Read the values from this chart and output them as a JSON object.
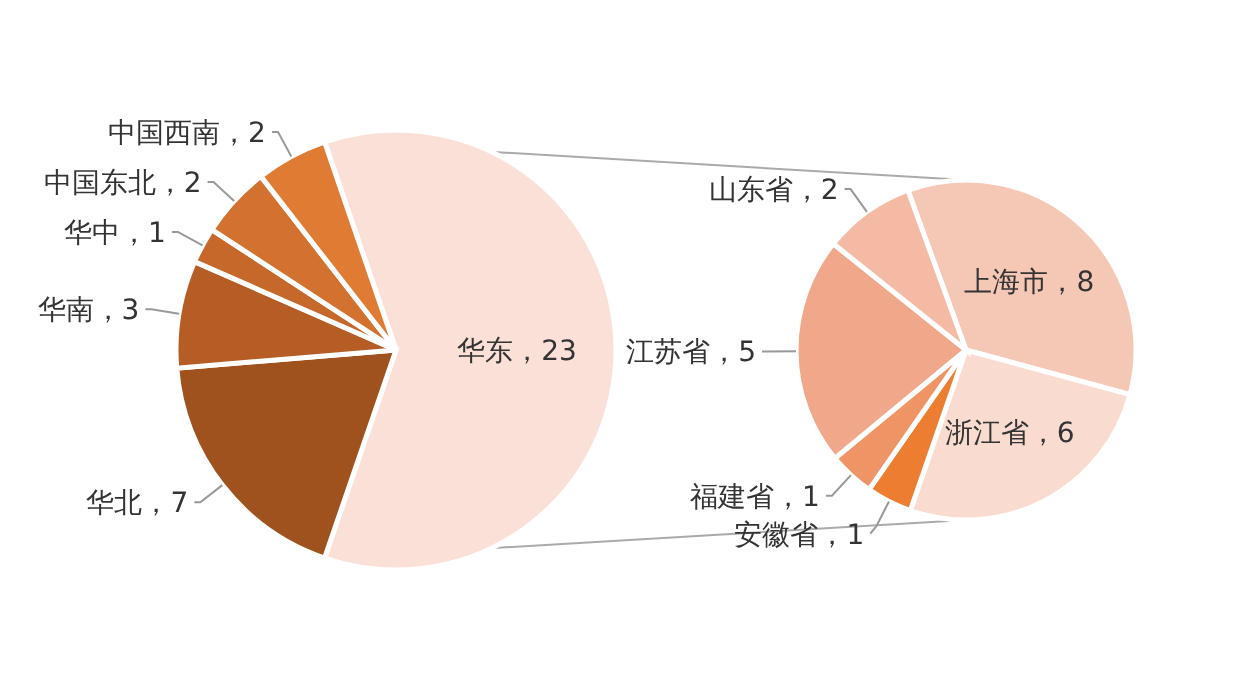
{
  "chart_data": [
    {
      "type": "pie",
      "categories": [
        "华东",
        "华北",
        "华南",
        "华中",
        "中国东北",
        "中国西南"
      ],
      "values": [
        23,
        7,
        3,
        1,
        2,
        2
      ],
      "colors": [
        "#fbe0d8",
        "#a0521e",
        "#b55d24",
        "#c7682b",
        "#d3722f",
        "#e07b33"
      ],
      "value_labels": [
        "，23",
        "，7",
        "，3",
        "，1",
        "，2",
        "，2"
      ]
    },
    {
      "type": "pie",
      "categories": [
        "上海市",
        "浙江省",
        "安徽省",
        "福建省",
        "江苏省",
        "山东省"
      ],
      "values": [
        8,
        6,
        1,
        1,
        5,
        2
      ],
      "colors": [
        "#f5c8b6",
        "#f9dbd0",
        "#ed7d31",
        "#ef9565",
        "#f1a789",
        "#f4baa3"
      ],
      "value_labels": [
        "，8",
        "，6",
        "，1",
        "，1",
        "，5",
        "，2"
      ]
    }
  ]
}
